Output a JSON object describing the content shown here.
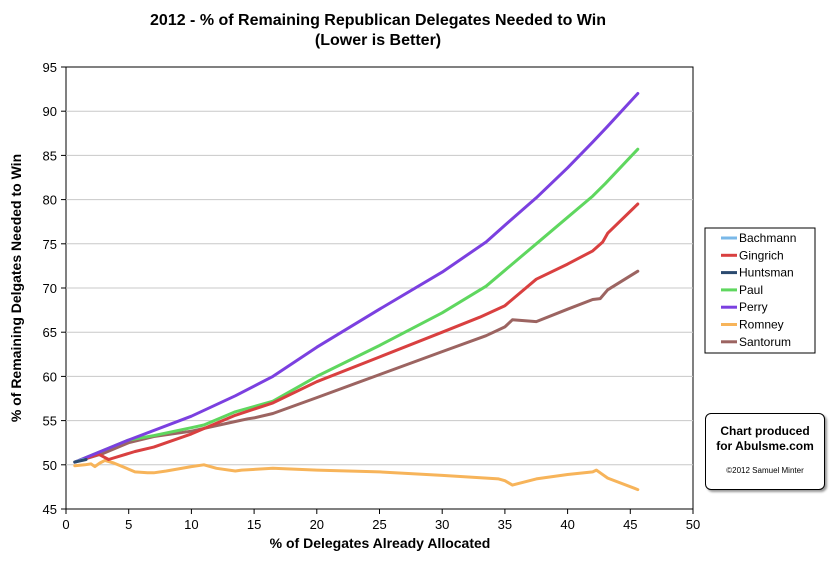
{
  "chart_data": {
    "type": "line",
    "title": "2012 - % of Remaining Republican Delegates Needed to Win",
    "subtitle": "(Lower is Better)",
    "xlabel": "% of Delegates Already Allocated",
    "ylabel": "% of Remaining Delgates Needed to Win",
    "xlim": [
      0,
      50
    ],
    "ylim": [
      45,
      95
    ],
    "xticks": [
      0,
      5,
      10,
      15,
      20,
      25,
      30,
      35,
      40,
      45,
      50
    ],
    "yticks": [
      45,
      50,
      55,
      60,
      65,
      70,
      75,
      80,
      85,
      90,
      95
    ],
    "grid": "horizontal",
    "legend_position": "right",
    "series": [
      {
        "name": "Bachmann",
        "color": "#7ab8e8",
        "points": [
          [
            0.7,
            50.3
          ],
          [
            1.4,
            50.6
          ]
        ]
      },
      {
        "name": "Gingrich",
        "color": "#d94040",
        "points": [
          [
            0.7,
            50.3
          ],
          [
            2.6,
            51.2
          ],
          [
            3.4,
            50.6
          ],
          [
            5.5,
            51.5
          ],
          [
            7.0,
            52.0
          ],
          [
            10.0,
            53.5
          ],
          [
            13.5,
            55.6
          ],
          [
            16.5,
            57.0
          ],
          [
            20.0,
            59.4
          ],
          [
            25.0,
            62.2
          ],
          [
            30.0,
            65.0
          ],
          [
            33.0,
            66.7
          ],
          [
            35.0,
            68.0
          ],
          [
            37.5,
            71.0
          ],
          [
            40.0,
            72.7
          ],
          [
            42.0,
            74.2
          ],
          [
            42.8,
            75.2
          ],
          [
            43.2,
            76.2
          ],
          [
            45.6,
            79.5
          ]
        ]
      },
      {
        "name": "Huntsman",
        "color": "#2b4a6f",
        "points": [
          [
            0.7,
            50.3
          ],
          [
            1.6,
            50.6
          ]
        ]
      },
      {
        "name": "Paul",
        "color": "#5fd75f",
        "points": [
          [
            0.7,
            50.3
          ],
          [
            5.0,
            52.8
          ],
          [
            7.0,
            53.3
          ],
          [
            10.0,
            54.2
          ],
          [
            11.0,
            54.5
          ],
          [
            13.5,
            56.0
          ],
          [
            16.5,
            57.2
          ],
          [
            20.0,
            60.0
          ],
          [
            25.0,
            63.5
          ],
          [
            30.0,
            67.2
          ],
          [
            33.5,
            70.2
          ],
          [
            35.0,
            72.0
          ],
          [
            37.5,
            75.0
          ],
          [
            40.0,
            78.0
          ],
          [
            42.0,
            80.4
          ],
          [
            43.0,
            81.8
          ],
          [
            45.6,
            85.7
          ]
        ]
      },
      {
        "name": "Perry",
        "color": "#7b40e0",
        "points": [
          [
            0.7,
            50.3
          ],
          [
            5.0,
            52.8
          ],
          [
            10.0,
            55.5
          ],
          [
            13.5,
            57.8
          ],
          [
            16.5,
            60.0
          ],
          [
            20.0,
            63.3
          ],
          [
            25.0,
            67.6
          ],
          [
            30.0,
            71.8
          ],
          [
            33.5,
            75.2
          ],
          [
            35.0,
            77.1
          ],
          [
            37.5,
            80.2
          ],
          [
            40.0,
            83.6
          ],
          [
            42.0,
            86.5
          ],
          [
            43.2,
            88.3
          ],
          [
            45.6,
            92.0
          ]
        ]
      },
      {
        "name": "Romney",
        "color": "#f7b45a",
        "points": [
          [
            0.7,
            49.9
          ],
          [
            1.5,
            50.0
          ],
          [
            2.0,
            50.1
          ],
          [
            2.3,
            49.8
          ],
          [
            2.7,
            50.2
          ],
          [
            3.1,
            50.5
          ],
          [
            3.8,
            50.2
          ],
          [
            5.0,
            49.5
          ],
          [
            5.5,
            49.2
          ],
          [
            6.5,
            49.1
          ],
          [
            7.0,
            49.1
          ],
          [
            8.0,
            49.3
          ],
          [
            10.0,
            49.8
          ],
          [
            11.0,
            50.0
          ],
          [
            12.0,
            49.6
          ],
          [
            13.5,
            49.3
          ],
          [
            14.0,
            49.4
          ],
          [
            16.5,
            49.6
          ],
          [
            20.0,
            49.4
          ],
          [
            25.0,
            49.2
          ],
          [
            30.0,
            48.8
          ],
          [
            34.5,
            48.4
          ],
          [
            35.0,
            48.2
          ],
          [
            35.6,
            47.7
          ],
          [
            37.5,
            48.4
          ],
          [
            40.0,
            48.9
          ],
          [
            42.0,
            49.2
          ],
          [
            42.3,
            49.4
          ],
          [
            42.6,
            49.1
          ],
          [
            43.2,
            48.5
          ],
          [
            45.6,
            47.2
          ]
        ]
      },
      {
        "name": "Santorum",
        "color": "#9c6461",
        "points": [
          [
            0.7,
            50.3
          ],
          [
            3.0,
            51.3
          ],
          [
            5.0,
            52.5
          ],
          [
            7.0,
            53.2
          ],
          [
            10.0,
            53.8
          ],
          [
            13.5,
            54.9
          ],
          [
            14.5,
            55.2
          ],
          [
            15.0,
            55.3
          ],
          [
            16.5,
            55.8
          ],
          [
            20.0,
            57.6
          ],
          [
            25.0,
            60.2
          ],
          [
            30.0,
            62.8
          ],
          [
            33.5,
            64.6
          ],
          [
            35.0,
            65.6
          ],
          [
            35.6,
            66.4
          ],
          [
            37.5,
            66.2
          ],
          [
            40.0,
            67.6
          ],
          [
            42.0,
            68.7
          ],
          [
            42.6,
            68.8
          ],
          [
            43.2,
            69.8
          ],
          [
            45.6,
            71.9
          ]
        ]
      }
    ]
  },
  "credit": {
    "line1": "Chart produced",
    "line2": "for Abulsme.com",
    "copyright": "©2012 Samuel Minter"
  }
}
